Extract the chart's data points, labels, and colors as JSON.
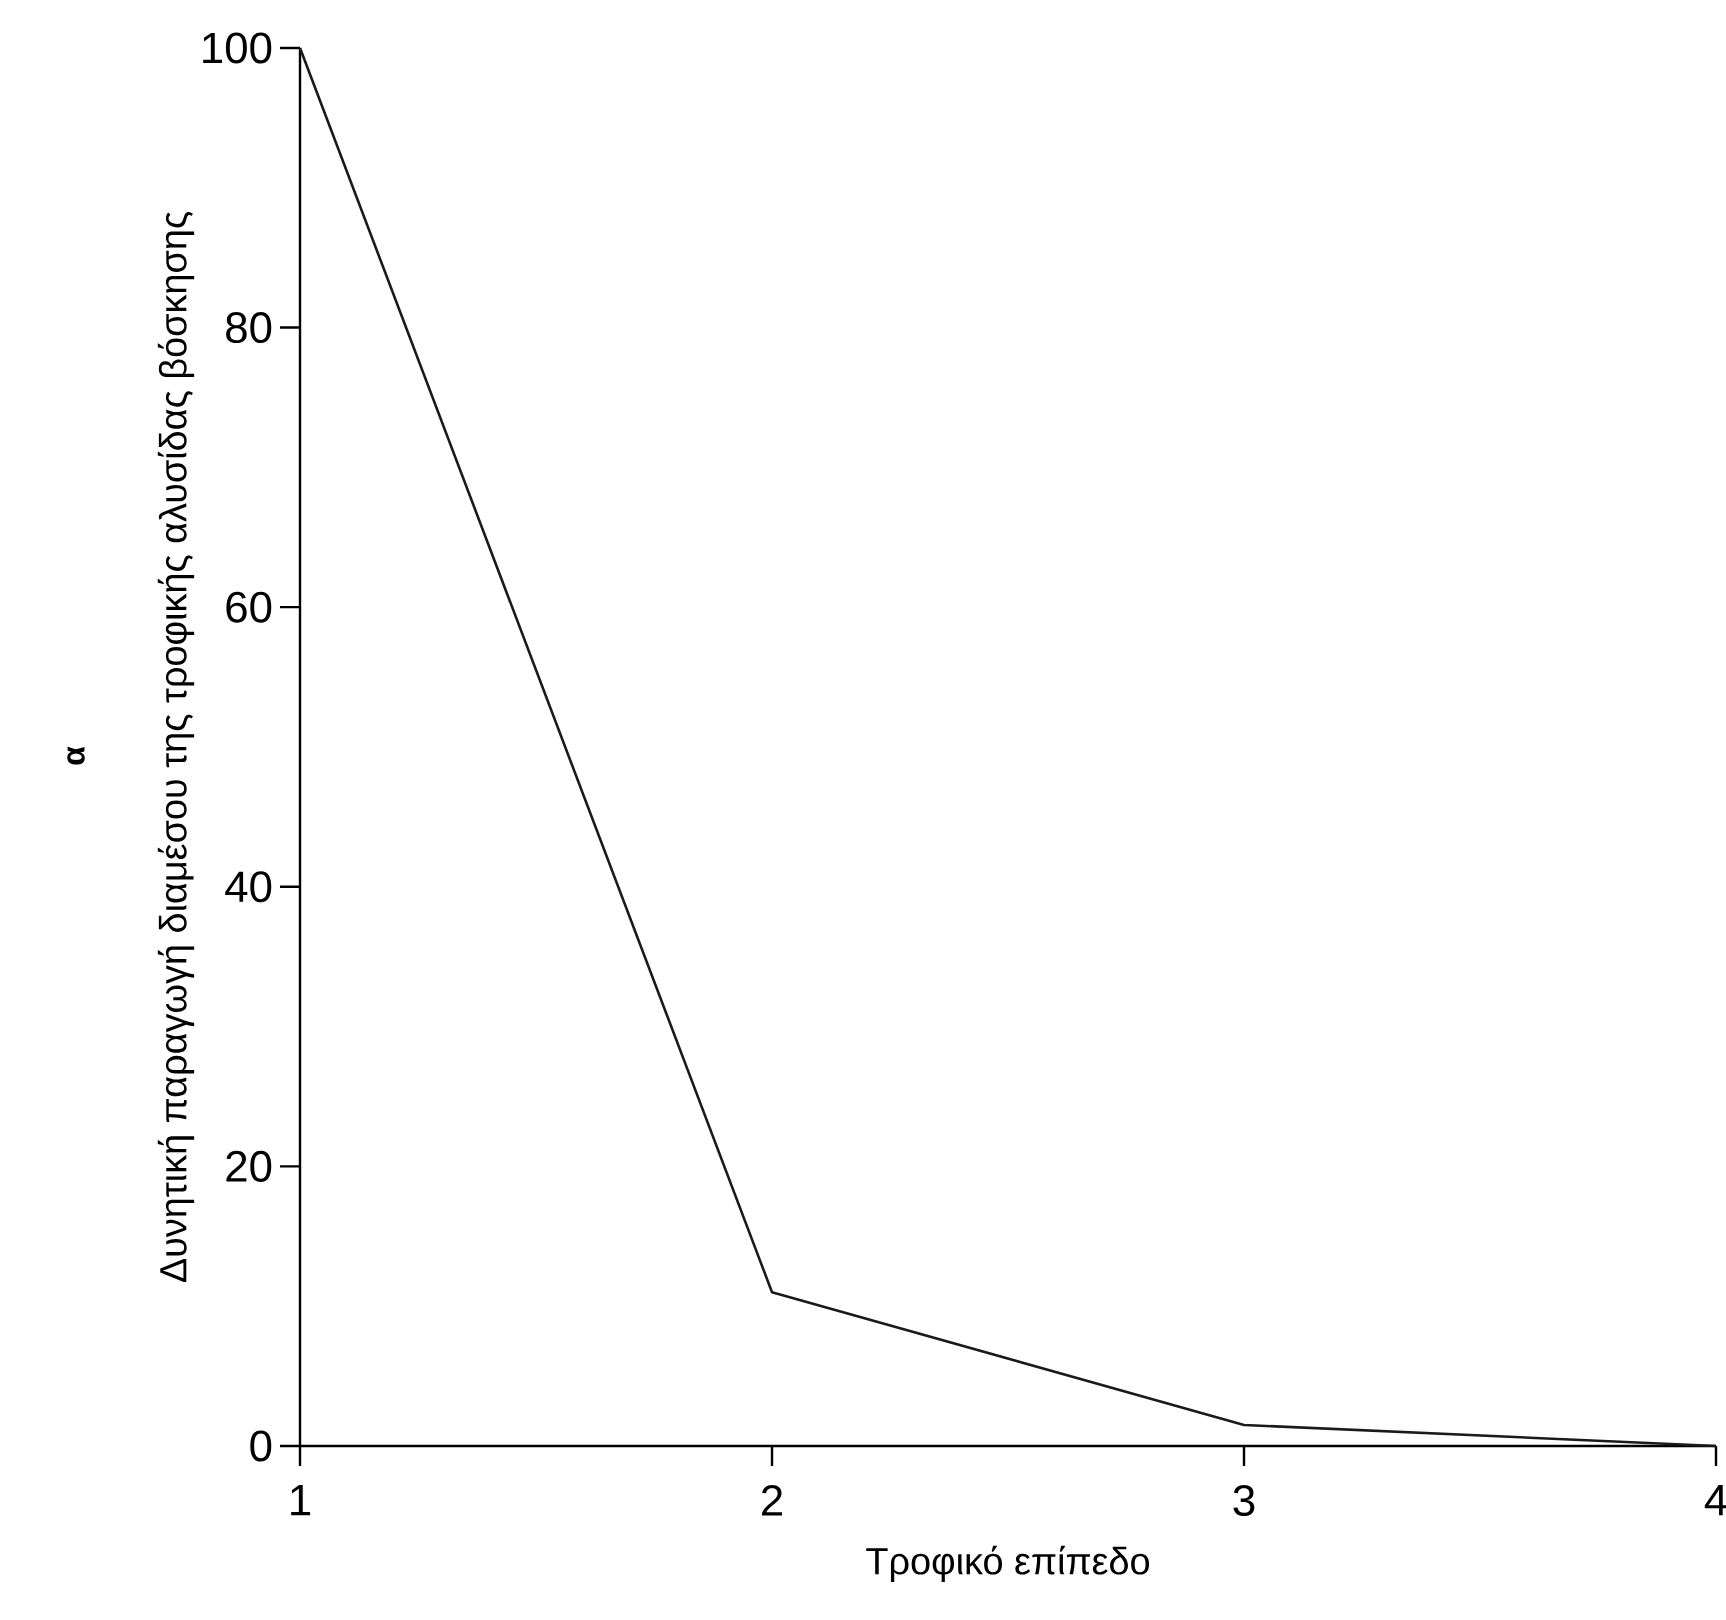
{
  "chart_data": {
    "type": "line",
    "xlabel": "Τροφικό επίπεδο",
    "ylabel": "Δυνητική παραγωγή διαμέσου της τροφικής αλυσίδας βόσκησης",
    "annotations": [
      "α"
    ],
    "x": [
      1,
      2,
      3,
      4
    ],
    "series": [
      {
        "color": "#1a1a1a",
        "values": [
          100,
          11,
          1.5,
          0
        ]
      }
    ],
    "xlim": [
      1,
      4
    ],
    "xticks": [
      1,
      2,
      3,
      4
    ],
    "ylim": [
      0,
      100
    ],
    "yticks": [
      0,
      20,
      40,
      60,
      80,
      100
    ],
    "grid": false,
    "marker": "none",
    "line_style": "solid"
  }
}
